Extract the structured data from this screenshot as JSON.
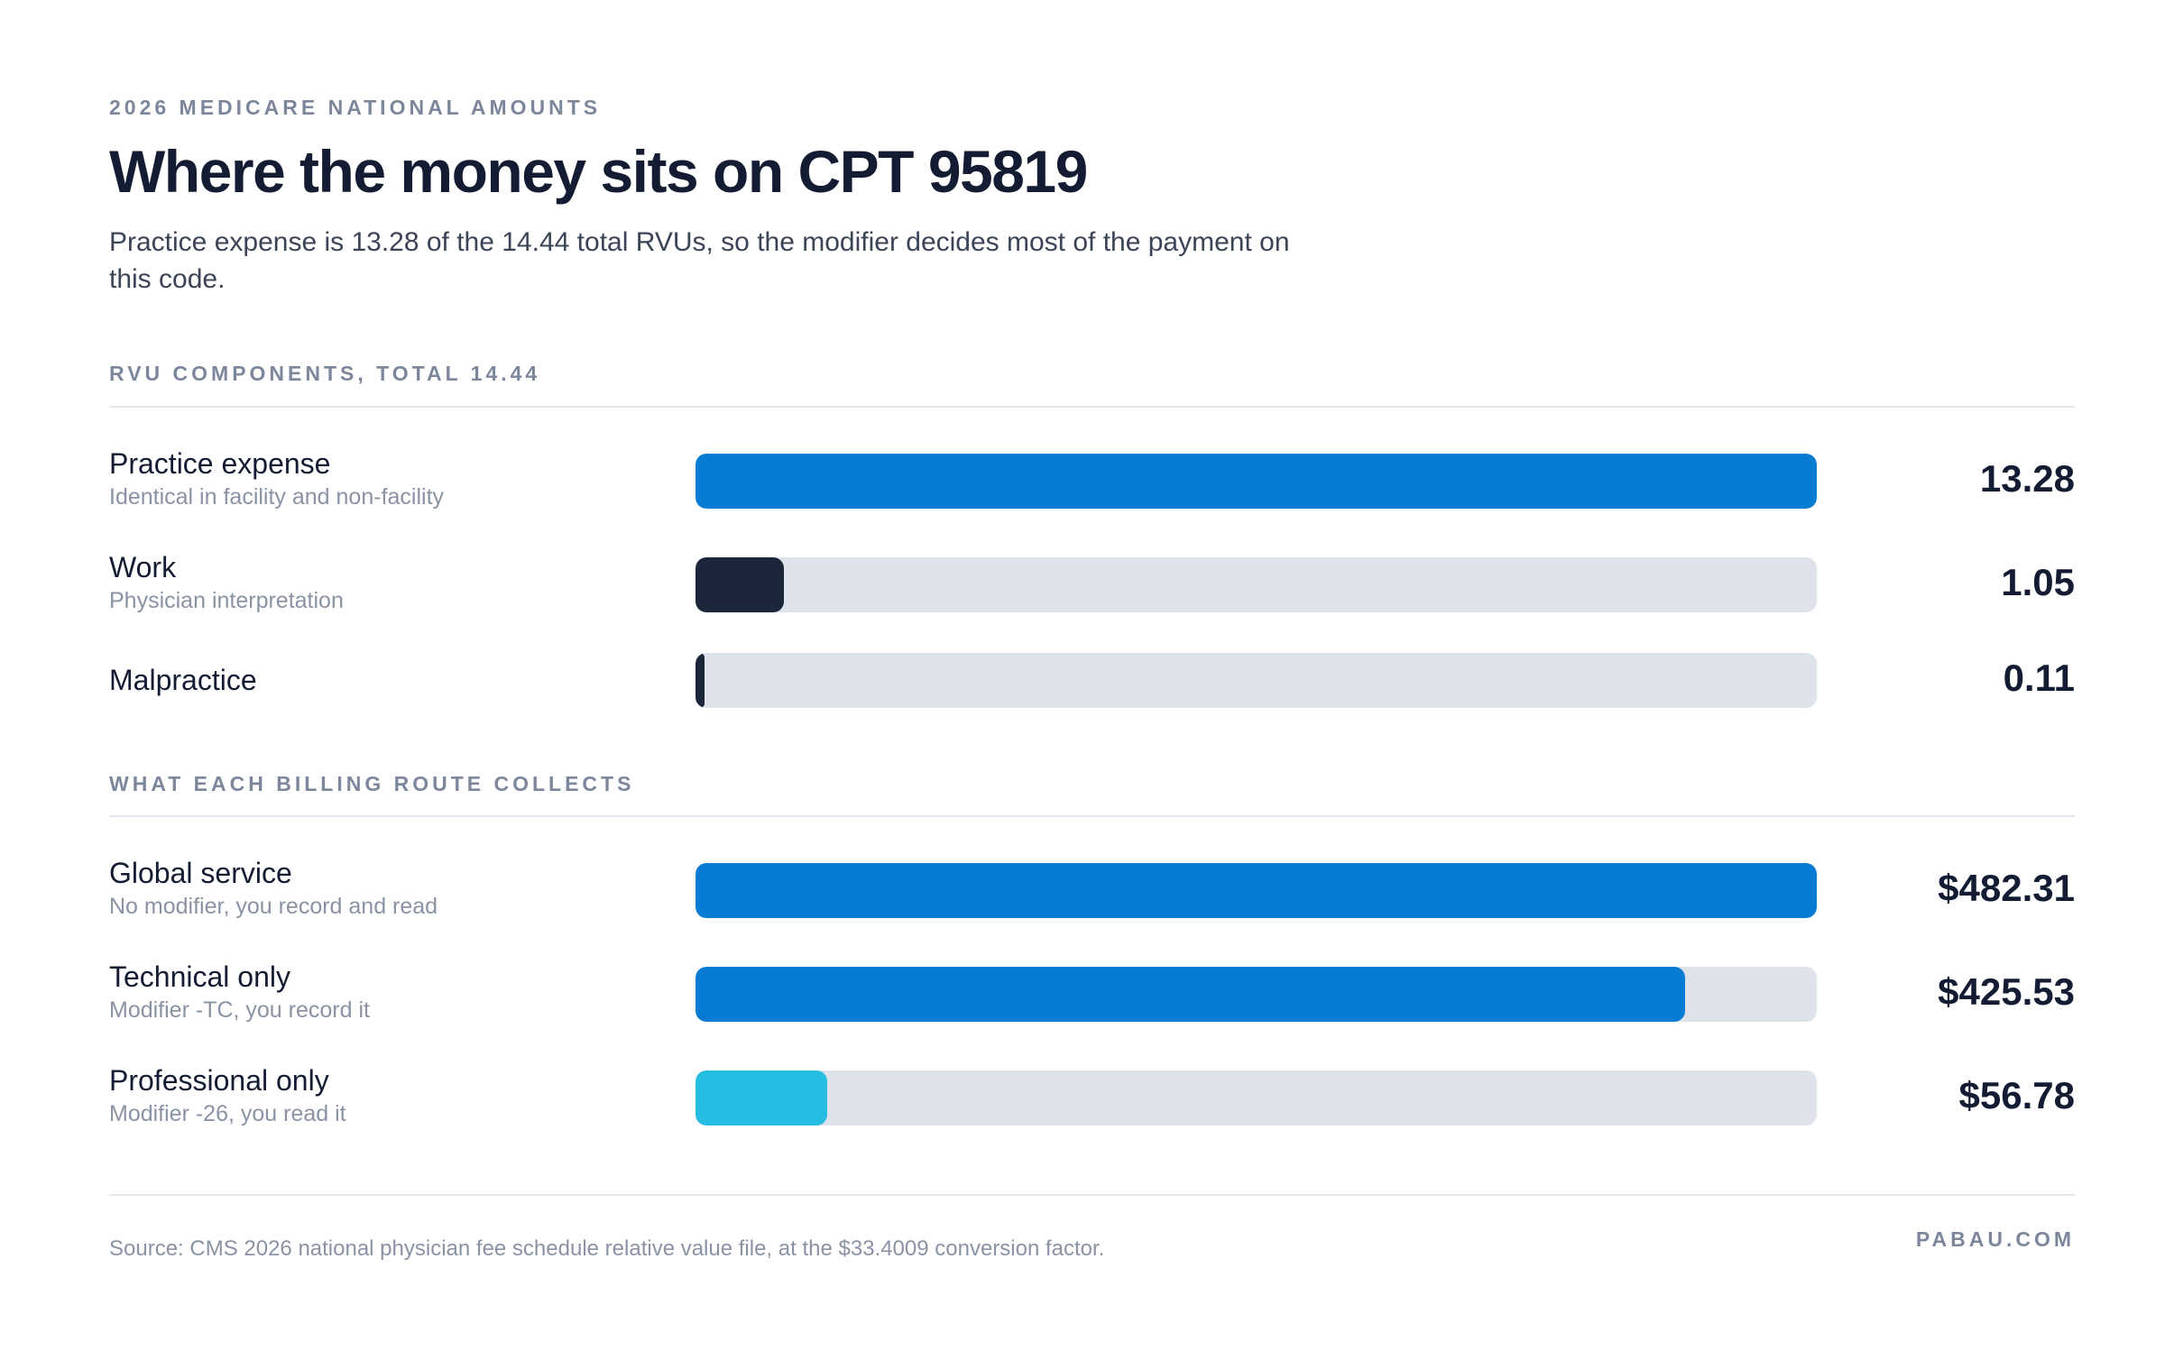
{
  "eyebrow": "2026 MEDICARE NATIONAL AMOUNTS",
  "title": "Where the money sits on CPT 95819",
  "subtitle": "Practice expense is 13.28 of the 14.44 total RVUs, so the modifier decides most of the payment on this code.",
  "footer": {
    "source": "Source: CMS 2026 national physician fee schedule relative value file, at the $33.4009 conversion factor.",
    "brand": "PABAU.COM"
  },
  "colors": {
    "primary_blue": "#087bd3",
    "dark_navy": "#1b263a",
    "light_blue": "#27bde2",
    "track": "#dde2eb"
  },
  "chart_data": [
    {
      "type": "bar",
      "orientation": "horizontal",
      "title": "RVU COMPONENTS, TOTAL 14.44",
      "total": 14.44,
      "xlim": [
        0,
        13.28
      ],
      "categories": [
        "Practice expense",
        "Work",
        "Malpractice"
      ],
      "subtitles": [
        "Identical in facility and non-facility",
        "Physician interpretation",
        ""
      ],
      "values": [
        13.28,
        1.05,
        0.11
      ],
      "value_labels": [
        "13.28",
        "1.05",
        "0.11"
      ],
      "colors": [
        "#087bd3",
        "#1b263a",
        "#1b263a"
      ]
    },
    {
      "type": "bar",
      "orientation": "horizontal",
      "title": "WHAT EACH BILLING ROUTE COLLECTS",
      "xlim": [
        0,
        482.31
      ],
      "categories": [
        "Global service",
        "Technical only",
        "Professional only"
      ],
      "subtitles": [
        "No modifier, you record and read",
        "Modifier -TC, you record it",
        "Modifier -26, you read it"
      ],
      "values": [
        482.31,
        425.53,
        56.78
      ],
      "value_labels": [
        "$482.31",
        "$425.53",
        "$56.78"
      ],
      "colors": [
        "#087bd3",
        "#087bd3",
        "#27bde2"
      ]
    }
  ]
}
